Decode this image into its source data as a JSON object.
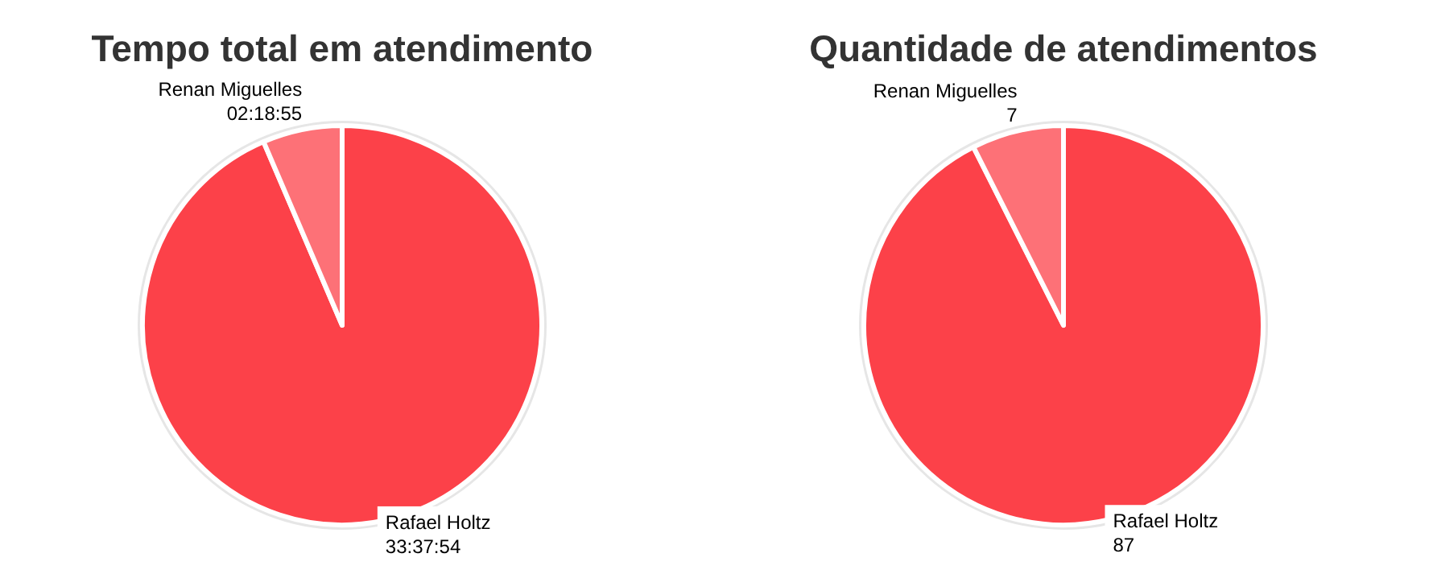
{
  "chart_data": [
    {
      "type": "pie",
      "title": "Tempo total em atendimento",
      "categories": [
        "Rafael Holtz",
        "Renan Miguelles"
      ],
      "values": [
        121074,
        8335
      ],
      "value_labels": [
        "33:37:54",
        "02:18:55"
      ],
      "colors": [
        "#fc4149",
        "#fd7177"
      ]
    },
    {
      "type": "pie",
      "title": "Quantidade de atendimentos",
      "categories": [
        "Rafael Holtz",
        "Renan Miguelles"
      ],
      "values": [
        87,
        7
      ],
      "data_labels": true,
      "colors": [
        "#fc4149",
        "#fd7177"
      ]
    }
  ]
}
